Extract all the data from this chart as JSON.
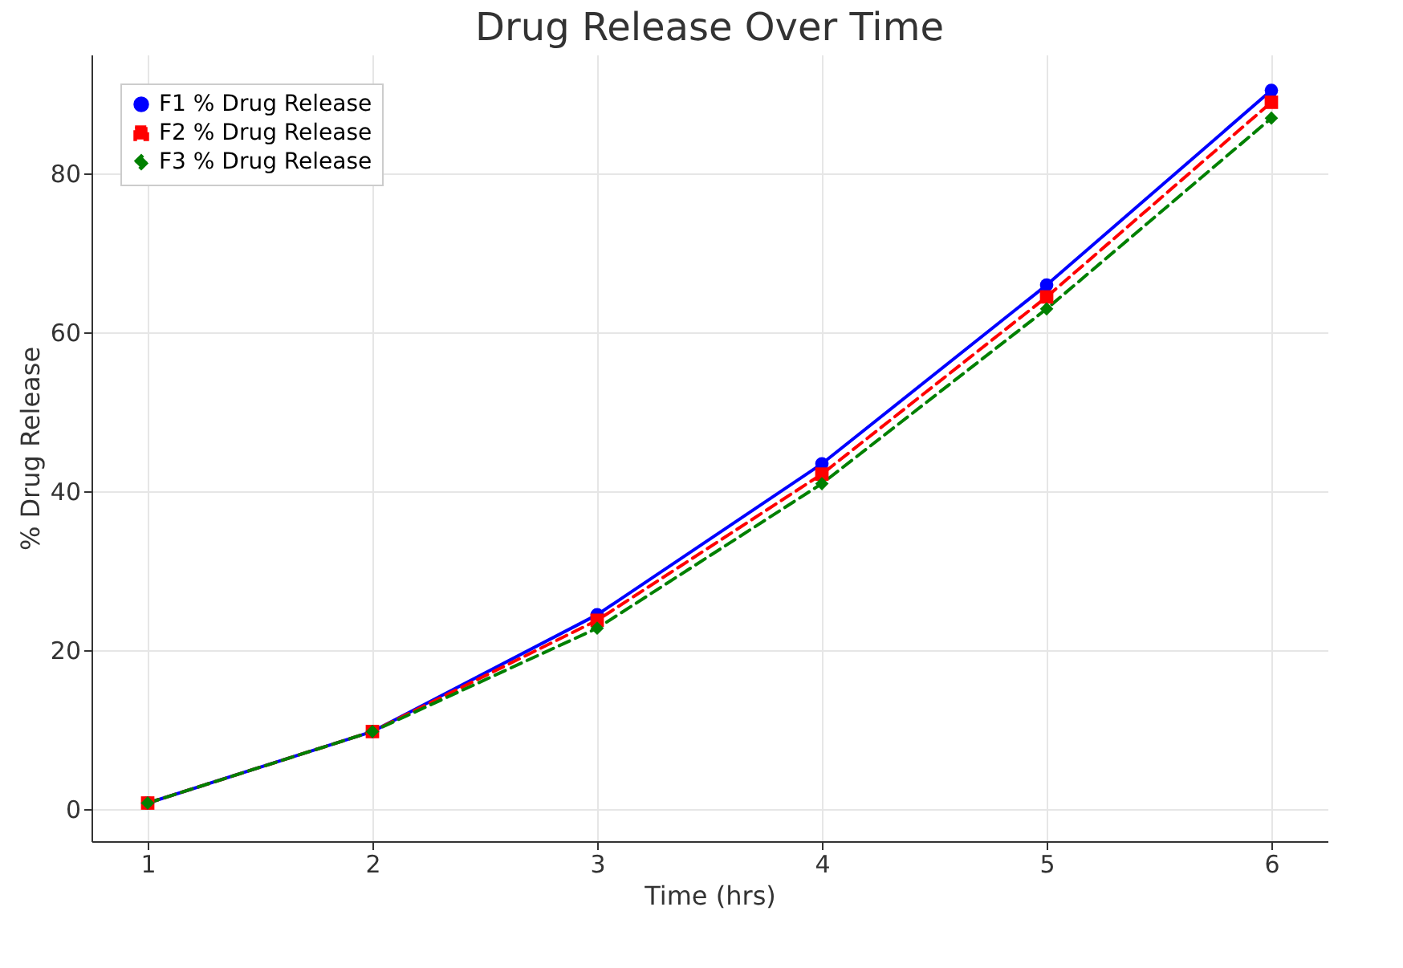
{
  "chart_data": {
    "type": "line",
    "title": "Drug Release Over Time",
    "xlabel": "Time (hrs)",
    "ylabel": "% Drug Release",
    "x": [
      1,
      2,
      3,
      4,
      5,
      6
    ],
    "series": [
      {
        "name": "F1 % Drug Release",
        "color": "#0000ff",
        "marker": "circle",
        "line_style": "solid",
        "values": [
          0.8,
          9.8,
          24.5,
          43.5,
          66,
          90.5
        ]
      },
      {
        "name": "F2 % Drug Release",
        "color": "#ff0000",
        "marker": "square",
        "line_style": "dashed",
        "values": [
          0.8,
          9.8,
          23.8,
          42.2,
          64.5,
          89
        ]
      },
      {
        "name": "F3 % Drug Release",
        "color": "#008000",
        "marker": "diamond",
        "line_style": "dashed",
        "values": [
          0.8,
          9.8,
          22.8,
          41,
          63,
          87
        ]
      }
    ],
    "xlim": [
      0.75,
      6.25
    ],
    "xticks": [
      1,
      2,
      3,
      4,
      5,
      6
    ],
    "ylim": [
      -4,
      95
    ],
    "yticks": [
      0,
      20,
      40,
      60,
      80
    ],
    "grid": true,
    "legend": "top left"
  }
}
